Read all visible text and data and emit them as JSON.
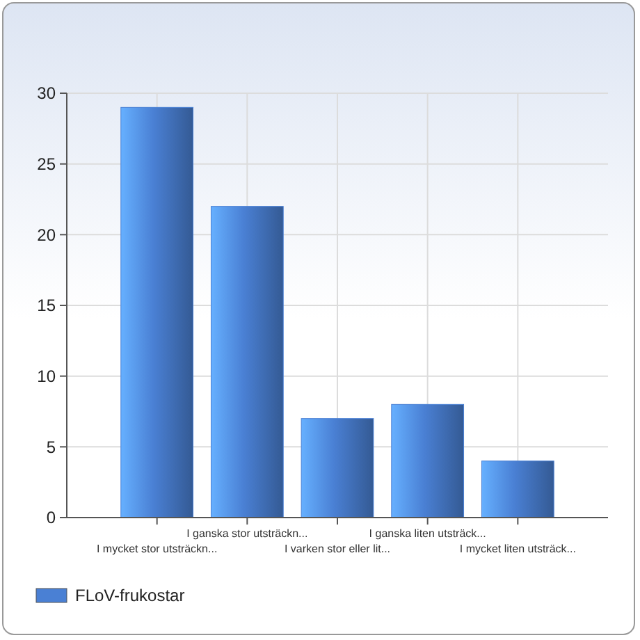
{
  "chart_data": {
    "type": "bar",
    "categories": [
      "I mycket stor utsträckn...",
      "I ganska stor utsträckn...",
      "I varken stor eller lit...",
      "I ganska liten utsträck...",
      "I mycket liten utsträck..."
    ],
    "series": [
      {
        "name": "FLoV-frukostar",
        "color": "#4a80d4",
        "values": [
          29,
          22,
          7,
          8,
          4
        ]
      }
    ],
    "ylim": [
      0,
      30
    ],
    "yticks": [
      0,
      5,
      10,
      15,
      20,
      25,
      30
    ],
    "grid": true,
    "legend": "bottom left"
  }
}
